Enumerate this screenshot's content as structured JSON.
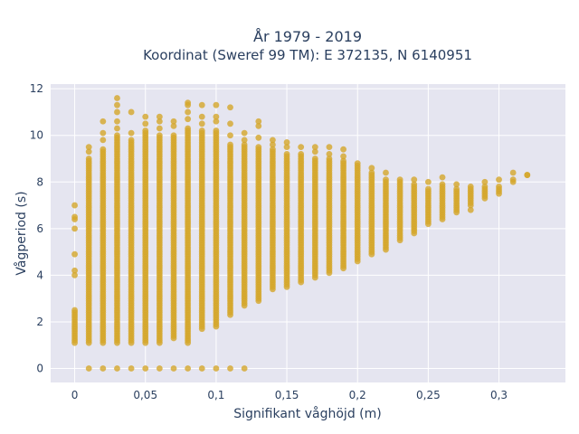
{
  "chart_data": {
    "type": "scatter",
    "title_line1": "År 1979 - 2019",
    "title_line2": "Koordinat (Sweref 99 TM): E 372135, N 6140951",
    "xlabel": "Signifikant våghöjd (m)",
    "ylabel": "Vågperiod (s)",
    "xlim": [
      -0.017,
      0.347
    ],
    "ylim": [
      -0.6,
      12.2
    ],
    "xtick_values": [
      0,
      0.05,
      0.1,
      0.15,
      0.2,
      0.25,
      0.3
    ],
    "xtick_labels": [
      "0",
      "0,05",
      "0,1",
      "0,15",
      "0,2",
      "0,25",
      "0,3"
    ],
    "ytick_values": [
      0,
      2,
      4,
      6,
      8,
      10,
      12
    ],
    "ytick_labels": [
      "0",
      "2",
      "4",
      "6",
      "8",
      "10",
      "12"
    ],
    "grid": true,
    "marker_color": "#d4a62a",
    "background_color": "#e5e5f0",
    "columns": [
      {
        "x": 0,
        "ymin": 1.1,
        "ymax": 2.5,
        "extra": [
          4.0,
          4.2,
          4.9,
          6.0,
          6.4,
          6.5,
          7.0
        ]
      },
      {
        "x": 0.01,
        "ymin": 1.1,
        "ymax": 9.0,
        "extra": [
          9.3,
          9.5
        ]
      },
      {
        "x": 0.02,
        "ymin": 1.1,
        "ymax": 9.4,
        "extra": [
          9.8,
          10.1,
          10.6
        ]
      },
      {
        "x": 0.03,
        "ymin": 1.1,
        "ymax": 10.0,
        "extra": [
          10.3,
          10.6,
          11.0,
          11.3,
          11.6
        ]
      },
      {
        "x": 0.04,
        "ymin": 1.1,
        "ymax": 9.8,
        "extra": [
          10.1,
          11.0
        ]
      },
      {
        "x": 0.05,
        "ymin": 1.1,
        "ymax": 10.2,
        "extra": [
          10.5,
          10.8
        ]
      },
      {
        "x": 0.06,
        "ymin": 1.1,
        "ymax": 10.0,
        "extra": [
          10.3,
          10.6,
          10.8
        ]
      },
      {
        "x": 0.07,
        "ymin": 1.3,
        "ymax": 10.0,
        "extra": [
          10.4,
          10.6
        ]
      },
      {
        "x": 0.08,
        "ymin": 1.1,
        "ymax": 10.3,
        "extra": [
          10.7,
          11.0,
          11.3,
          11.4
        ]
      },
      {
        "x": 0.09,
        "ymin": 1.7,
        "ymax": 10.2,
        "extra": [
          10.5,
          10.8,
          11.3
        ]
      },
      {
        "x": 0.1,
        "ymin": 1.8,
        "ymax": 10.2,
        "extra": [
          10.6,
          10.8,
          11.3
        ]
      },
      {
        "x": 0.11,
        "ymin": 2.3,
        "ymax": 9.6,
        "extra": [
          10.0,
          10.5,
          11.2
        ]
      },
      {
        "x": 0.12,
        "ymin": 2.7,
        "ymax": 9.6,
        "extra": [
          9.8,
          10.1
        ]
      },
      {
        "x": 0.13,
        "ymin": 2.9,
        "ymax": 9.5,
        "extra": [
          9.9,
          10.4,
          10.6
        ]
      },
      {
        "x": 0.14,
        "ymin": 3.4,
        "ymax": 9.4,
        "extra": [
          9.6,
          9.8
        ]
      },
      {
        "x": 0.15,
        "ymin": 3.5,
        "ymax": 9.2,
        "extra": [
          9.5,
          9.7
        ]
      },
      {
        "x": 0.16,
        "ymin": 3.7,
        "ymax": 9.2,
        "extra": [
          9.5
        ]
      },
      {
        "x": 0.17,
        "ymin": 3.9,
        "ymax": 9.0,
        "extra": [
          9.3,
          9.5
        ]
      },
      {
        "x": 0.18,
        "ymin": 4.1,
        "ymax": 9.0,
        "extra": [
          9.2,
          9.5
        ]
      },
      {
        "x": 0.19,
        "ymin": 4.3,
        "ymax": 8.9,
        "extra": [
          9.1,
          9.4
        ]
      },
      {
        "x": 0.2,
        "ymin": 4.6,
        "ymax": 8.8,
        "extra": []
      },
      {
        "x": 0.21,
        "ymin": 4.9,
        "ymax": 8.4,
        "extra": [
          8.6
        ]
      },
      {
        "x": 0.22,
        "ymin": 5.1,
        "ymax": 8.1,
        "extra": [
          8.4
        ]
      },
      {
        "x": 0.23,
        "ymin": 5.5,
        "ymax": 8.1,
        "extra": []
      },
      {
        "x": 0.24,
        "ymin": 5.8,
        "ymax": 7.9,
        "extra": [
          8.1
        ]
      },
      {
        "x": 0.25,
        "ymin": 6.2,
        "ymax": 7.7,
        "extra": [
          8.0
        ]
      },
      {
        "x": 0.26,
        "ymin": 6.4,
        "ymax": 7.9,
        "extra": [
          8.2
        ]
      },
      {
        "x": 0.27,
        "ymin": 6.7,
        "ymax": 7.7,
        "extra": [
          7.9
        ]
      },
      {
        "x": 0.28,
        "ymin": 7.0,
        "ymax": 7.8,
        "extra": [
          6.8
        ]
      },
      {
        "x": 0.29,
        "ymin": 7.3,
        "ymax": 7.8,
        "extra": [
          8.0
        ]
      },
      {
        "x": 0.3,
        "ymin": 7.5,
        "ymax": 7.8,
        "extra": [
          8.1
        ]
      },
      {
        "x": 0.31,
        "ymin": 8.0,
        "ymax": 8.1,
        "extra": [
          8.4
        ]
      },
      {
        "x": 0.32,
        "ymin": 8.3,
        "ymax": 8.3,
        "extra": []
      }
    ],
    "zero_row": {
      "y": 0,
      "x": [
        0.01,
        0.02,
        0.03,
        0.04,
        0.05,
        0.06,
        0.07,
        0.08,
        0.09,
        0.1,
        0.11,
        0.12
      ]
    }
  }
}
